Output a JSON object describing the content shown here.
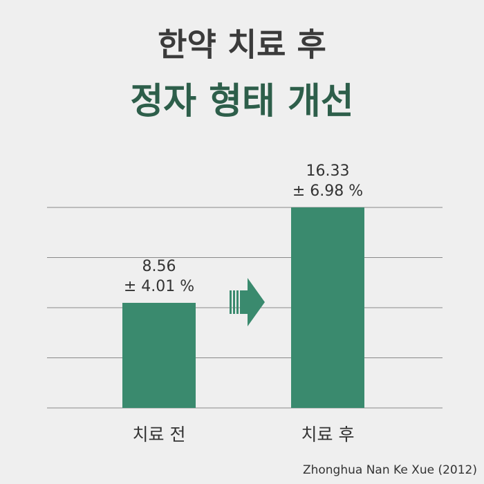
{
  "chart_data": {
    "type": "bar",
    "title": "한약 치료 후",
    "subtitle": "정자 형태 개선",
    "categories": [
      "치료 전",
      "치료 후"
    ],
    "values": [
      8.56,
      16.33
    ],
    "error_labels": [
      "± 4.01 %",
      "± 6.98 %"
    ],
    "color": "#3a8a6e",
    "ylim": [
      0,
      16.33
    ],
    "grid": true,
    "source": "Zhonghua Nan Ke Xue (2012)"
  }
}
